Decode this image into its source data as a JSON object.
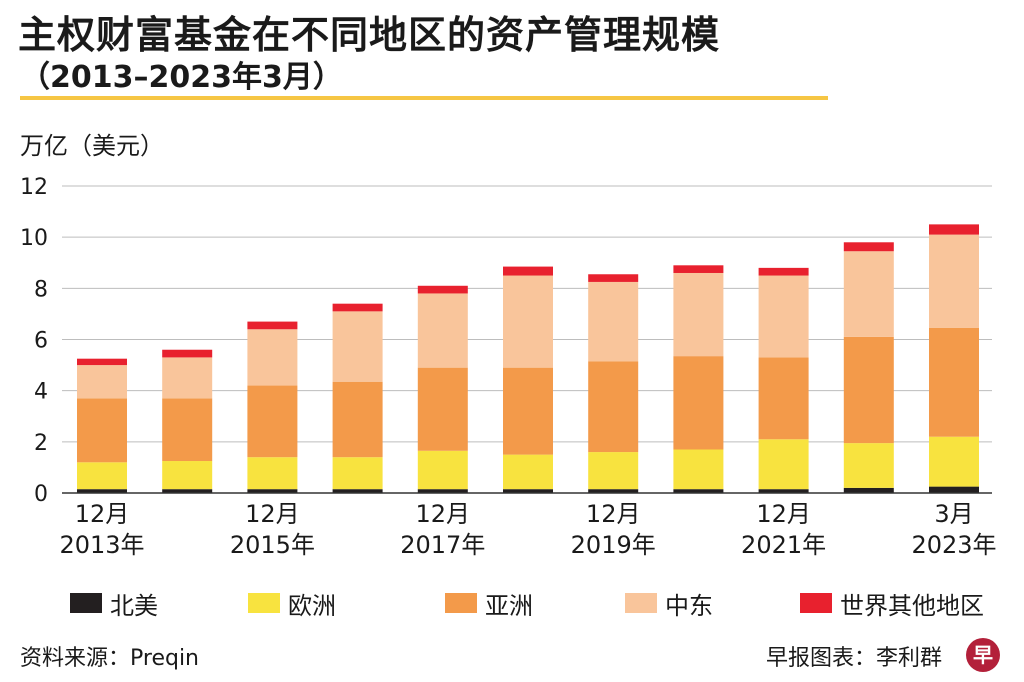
{
  "header": {
    "title": "主权财富基金在不同地区的资产管理规模",
    "subtitle": "（2013–2023年3月）",
    "unit": "万亿（美元）"
  },
  "chart_data": {
    "type": "bar",
    "stacked": true,
    "categories": [
      "2013-12",
      "2014-12",
      "2015-12",
      "2016-12",
      "2017-12",
      "2018-12",
      "2019-12",
      "2020-12",
      "2021-12",
      "2022-12",
      "2023-03"
    ],
    "tick_labels": [
      {
        "index": 0,
        "line1": "12月",
        "line2": "2013年"
      },
      {
        "index": 2,
        "line1": "12月",
        "line2": "2015年"
      },
      {
        "index": 4,
        "line1": "12月",
        "line2": "2017年"
      },
      {
        "index": 6,
        "line1": "12月",
        "line2": "2019年"
      },
      {
        "index": 8,
        "line1": "12月",
        "line2": "2021年"
      },
      {
        "index": 10,
        "line1": "3月",
        "line2": "2023年"
      }
    ],
    "yticks": [
      "0",
      "2",
      "4",
      "6",
      "8",
      "10",
      "12"
    ],
    "ylim": [
      0,
      12
    ],
    "grid": true,
    "series": [
      {
        "name": "北美",
        "color": "#231f20",
        "values": [
          0.15,
          0.15,
          0.15,
          0.15,
          0.15,
          0.15,
          0.15,
          0.15,
          0.15,
          0.2,
          0.25
        ]
      },
      {
        "name": "欧洲",
        "color": "#f8e33f",
        "values": [
          1.05,
          1.1,
          1.25,
          1.25,
          1.5,
          1.35,
          1.45,
          1.55,
          1.95,
          1.75,
          1.95
        ]
      },
      {
        "name": "亚洲",
        "color": "#f39a4a",
        "values": [
          2.5,
          2.45,
          2.8,
          2.95,
          3.25,
          3.4,
          3.55,
          3.65,
          3.2,
          4.15,
          4.25
        ]
      },
      {
        "name": "中东",
        "color": "#f9c59b",
        "values": [
          1.3,
          1.6,
          2.2,
          2.75,
          2.9,
          3.6,
          3.1,
          3.25,
          3.2,
          3.35,
          3.65
        ]
      },
      {
        "name": "世界其他地区",
        "color": "#e8212e",
        "values": [
          0.25,
          0.3,
          0.3,
          0.3,
          0.3,
          0.35,
          0.3,
          0.3,
          0.3,
          0.35,
          0.4
        ]
      }
    ]
  },
  "footer": {
    "source": "资料来源：Preqin",
    "credit": "早报图表：李利群",
    "logo_char": "早"
  }
}
